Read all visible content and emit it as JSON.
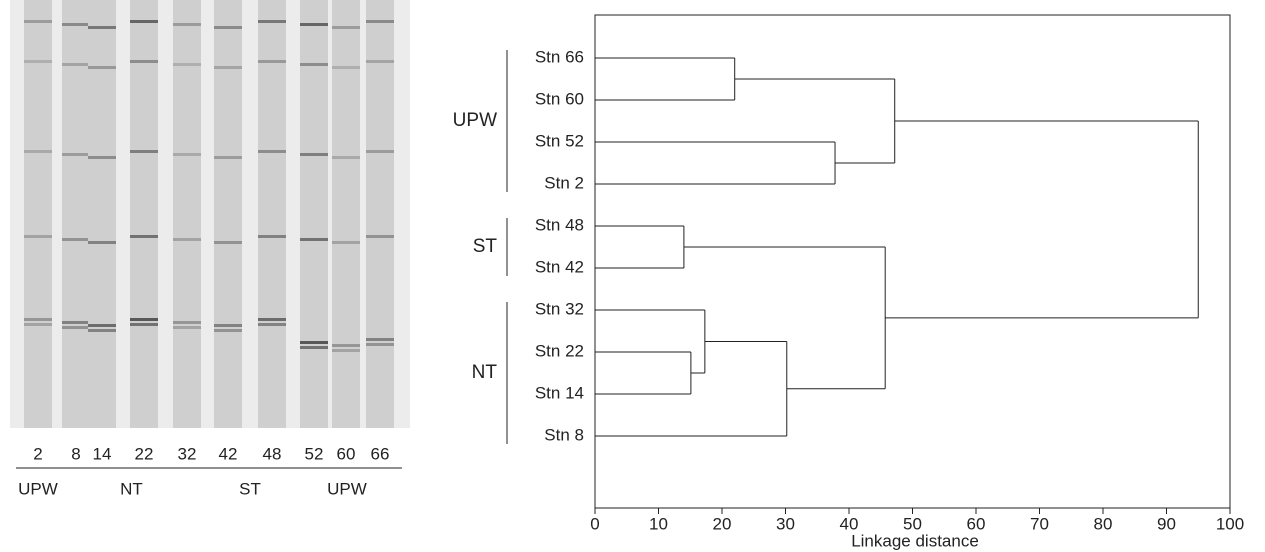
{
  "gel": {
    "lanes": [
      "2",
      "8",
      "14",
      "22",
      "32",
      "42",
      "48",
      "52",
      "60",
      "66"
    ],
    "groups": [
      {
        "label": "UPW",
        "lanes": [
          "2"
        ]
      },
      {
        "label": "NT",
        "lanes": [
          "8",
          "14",
          "22",
          "32"
        ]
      },
      {
        "label": "ST",
        "lanes": [
          "42",
          "48"
        ]
      },
      {
        "label": "UPW",
        "lanes": [
          "52",
          "60",
          "66"
        ]
      }
    ]
  },
  "chart_data": {
    "type": "dendrogram",
    "xlabel": "Linkage distance",
    "xlim": [
      0,
      100
    ],
    "xticks": [
      0,
      10,
      20,
      30,
      40,
      50,
      60,
      70,
      80,
      90,
      100
    ],
    "tree": {
      "distance": 95,
      "children": [
        {
          "group": "UPW",
          "distance": 47.2,
          "children": [
            {
              "distance": 22,
              "children": [
                {
                  "label": "Stn 66"
                },
                {
                  "label": "Stn 60"
                }
              ]
            },
            {
              "distance": 37.8,
              "children": [
                {
                  "label": "Stn 52"
                },
                {
                  "label": "Stn 2"
                }
              ]
            }
          ]
        },
        {
          "distance": 45.7,
          "children": [
            {
              "group": "ST",
              "distance": 14,
              "children": [
                {
                  "label": "Stn 48"
                },
                {
                  "label": "Stn 42"
                }
              ]
            },
            {
              "group": "NT",
              "distance": 30.2,
              "children": [
                {
                  "distance": 17.3,
                  "children": [
                    {
                      "label": "Stn 32"
                    },
                    {
                      "distance": 15.1,
                      "children": [
                        {
                          "label": "Stn 22"
                        },
                        {
                          "label": "Stn 14"
                        }
                      ]
                    }
                  ]
                },
                {
                  "label": "Stn 8"
                }
              ]
            }
          ]
        }
      ]
    }
  }
}
